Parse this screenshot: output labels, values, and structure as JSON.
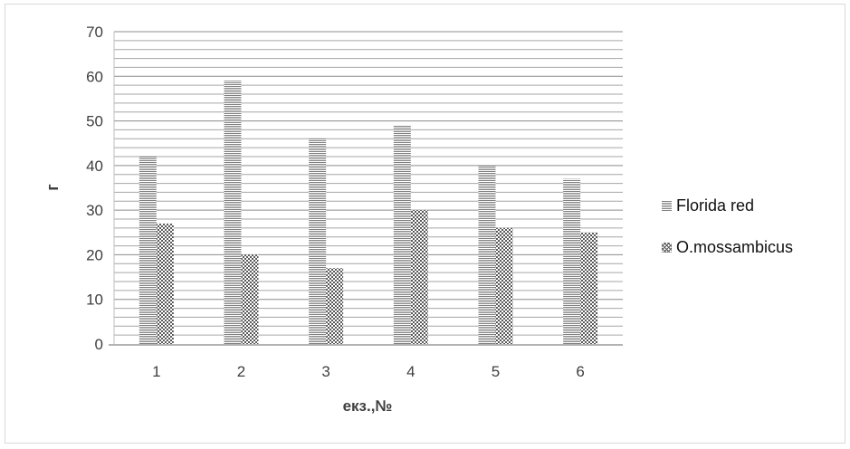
{
  "chart_data": {
    "type": "bar",
    "categories": [
      "1",
      "2",
      "3",
      "4",
      "5",
      "6"
    ],
    "series": [
      {
        "name": "Florida red",
        "values": [
          42,
          59,
          46,
          49,
          40,
          37
        ]
      },
      {
        "name": "O.mossambicus",
        "values": [
          27,
          20,
          17,
          30,
          26,
          25
        ]
      }
    ],
    "xlabel": "екз.,№",
    "ylabel": "г",
    "ylim": [
      0,
      70
    ],
    "yticks": [
      "0",
      "10",
      "20",
      "30",
      "40",
      "50",
      "60",
      "70"
    ],
    "grid": true,
    "legend_position": "right"
  }
}
